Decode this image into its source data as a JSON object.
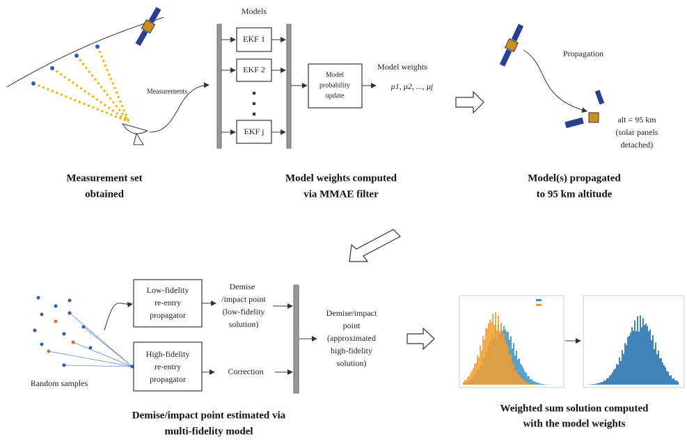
{
  "panel1": {
    "measurements": "Measurements",
    "caption": [
      "Measurement set",
      "obtained"
    ]
  },
  "panel2": {
    "models": "Models",
    "ekf": [
      "EKF 1",
      "EKF 2",
      "EKF j"
    ],
    "update": [
      "Model",
      "probability",
      "update"
    ],
    "weights_label": "Model weights",
    "weights": "μ1, μ2, ..., μj",
    "caption": [
      "Model weights computed",
      "via MMAE filter"
    ]
  },
  "panel3": {
    "propagation": "Propagation",
    "alt": [
      "alt = 95 km",
      "(solar panels",
      "detached)"
    ],
    "caption": [
      "Model(s) propagated",
      "to 95 km altitude"
    ]
  },
  "panel4": {
    "samples": "Random samples",
    "low": [
      "Low-fidelity",
      "re-entry",
      "propagator"
    ],
    "high": [
      "High-fidelity",
      "re-entry",
      "propagator"
    ],
    "low_out": [
      "Demise",
      "/impact point",
      "(low-fidelity",
      "solution)"
    ],
    "correction": "Correction",
    "result": [
      "Demise/impact",
      "point",
      "(approximated",
      "high-fidelity",
      "solution)"
    ],
    "caption": [
      "Demise/impact point estimated via",
      "multi-fidelity model"
    ]
  },
  "panel5": {
    "caption": [
      "Weighted sum solution computed",
      "with the model weights"
    ]
  }
}
